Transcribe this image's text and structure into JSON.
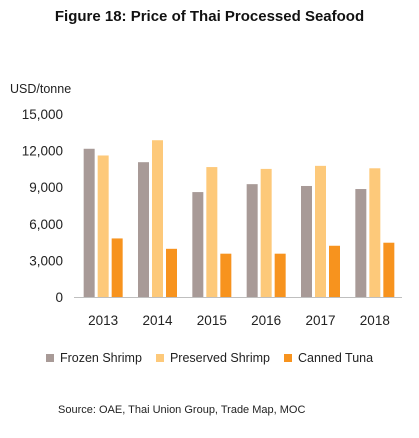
{
  "chart_data": {
    "type": "bar",
    "title": "Figure 18: Price of Thai Processed Seafood",
    "ylabel": "USD/tonne",
    "categories": [
      "2013",
      "2014",
      "2015",
      "2016",
      "2017",
      "2018"
    ],
    "series": [
      {
        "name": "Frozen Shrimp",
        "color": "#a89a97",
        "values": [
          12150,
          11050,
          8600,
          9250,
          9100,
          8850
        ]
      },
      {
        "name": "Preserved Shrimp",
        "color": "#fdc97a",
        "values": [
          11600,
          12850,
          10650,
          10500,
          10750,
          10550
        ]
      },
      {
        "name": "Canned Tuna",
        "color": "#f7931e",
        "values": [
          4800,
          3950,
          3550,
          3550,
          4200,
          4450
        ]
      }
    ],
    "yticks": [
      "0",
      "3,000",
      "6,000",
      "9,000",
      "12,000",
      "15,000"
    ],
    "ylim": [
      0,
      15000
    ],
    "grid": false,
    "legend": "bottom",
    "source": "Source: OAE, Thai Union Group, Trade Map, MOC"
  }
}
